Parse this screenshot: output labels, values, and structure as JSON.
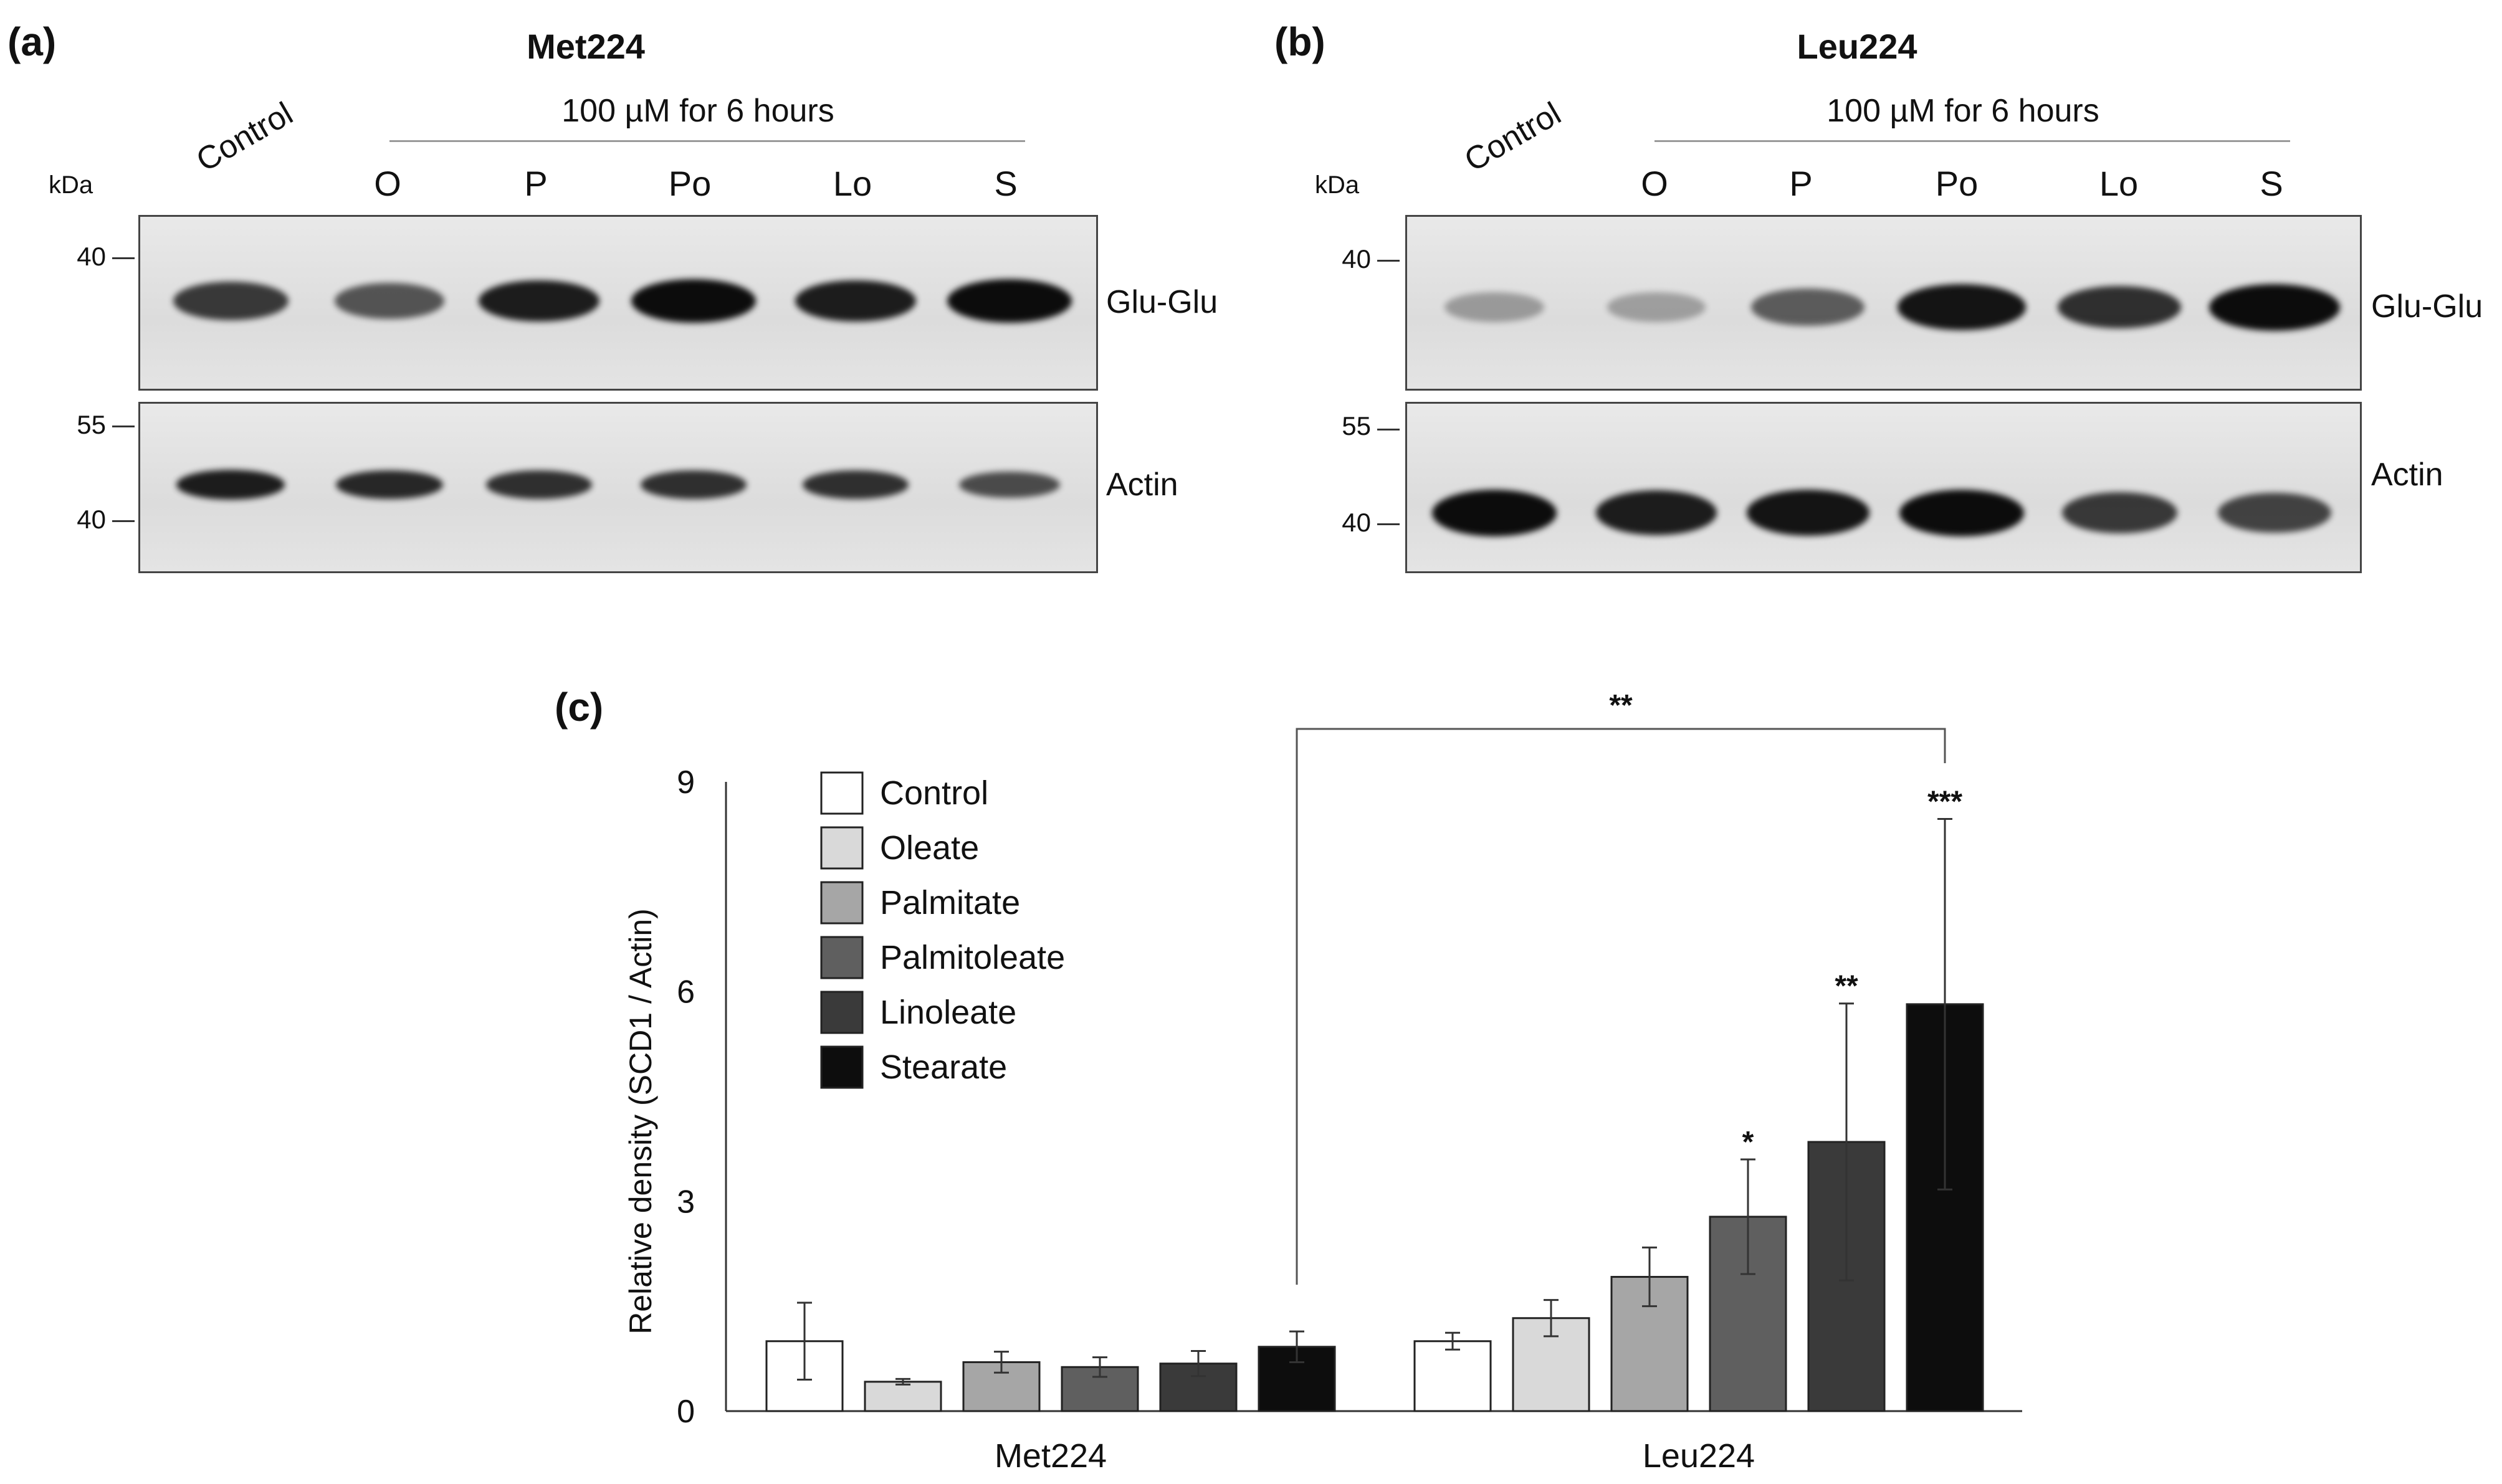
{
  "panel_a": {
    "label": "(a)",
    "title": "Met224",
    "treatment": "100 µM for 6 hours",
    "control_label": "Control",
    "lanes": [
      "O",
      "P",
      "Po",
      "Lo",
      "S"
    ],
    "kda_label": "kDa",
    "top_markers": [
      "40"
    ],
    "bottom_markers": [
      "55",
      "40"
    ],
    "top_blot_label": "Glu-Glu",
    "bottom_blot_label": "Actin",
    "top_band_intensity": [
      0.75,
      0.6,
      0.9,
      1.0,
      0.9,
      1.0
    ],
    "bottom_band_intensity": [
      0.9,
      0.85,
      0.8,
      0.8,
      0.8,
      0.65
    ]
  },
  "panel_b": {
    "label": "(b)",
    "title": "Leu224",
    "treatment": "100 µM for 6 hours",
    "control_label": "Control",
    "lanes": [
      "O",
      "P",
      "Po",
      "Lo",
      "S"
    ],
    "kda_label": "kDa",
    "top_markers": [
      "40"
    ],
    "bottom_markers": [
      "55",
      "40"
    ],
    "top_blot_label": "Glu-Glu",
    "bottom_blot_label": "Actin",
    "top_band_intensity": [
      0.2,
      0.18,
      0.55,
      0.95,
      0.8,
      1.0
    ],
    "bottom_band_intensity": [
      1.0,
      0.9,
      0.95,
      1.0,
      0.75,
      0.7
    ]
  },
  "panel_c": {
    "label": "(c)"
  },
  "chart_data": {
    "type": "bar",
    "title": "",
    "ylabel": "Relative density (SCD1 / Actin)",
    "xlabel": "",
    "ylim": [
      0,
      9
    ],
    "yticks": [
      "0",
      "3",
      "6",
      "9"
    ],
    "categories": [
      "Met224",
      "Leu224"
    ],
    "series": [
      {
        "name": "Control",
        "color": "#ffffff",
        "values": [
          1.0,
          1.0
        ],
        "errors": [
          0.55,
          0.12
        ],
        "sig": [
          "",
          ""
        ]
      },
      {
        "name": "Oleate",
        "color": "#d9d9d9",
        "values": [
          0.42,
          1.33
        ],
        "errors": [
          0.04,
          0.26
        ],
        "sig": [
          "",
          ""
        ]
      },
      {
        "name": "Palmitate",
        "color": "#a6a6a6",
        "values": [
          0.7,
          1.92
        ],
        "errors": [
          0.15,
          0.42
        ],
        "sig": [
          "",
          ""
        ]
      },
      {
        "name": "Palmitoleate",
        "color": "#5f5f5f",
        "values": [
          0.63,
          2.78
        ],
        "errors": [
          0.14,
          0.82
        ],
        "sig": [
          "",
          "*"
        ]
      },
      {
        "name": "Linoleate",
        "color": "#3a3a3a",
        "values": [
          0.68,
          3.85
        ],
        "errors": [
          0.18,
          1.98
        ],
        "sig": [
          "",
          "**"
        ]
      },
      {
        "name": "Stearate",
        "color": "#0d0d0d",
        "values": [
          0.92,
          5.82
        ],
        "errors": [
          0.22,
          2.65
        ],
        "sig": [
          "",
          "***"
        ]
      }
    ],
    "comparison": {
      "from": "Met224 Stearate",
      "to": "Leu224 Stearate",
      "label": "**"
    }
  }
}
